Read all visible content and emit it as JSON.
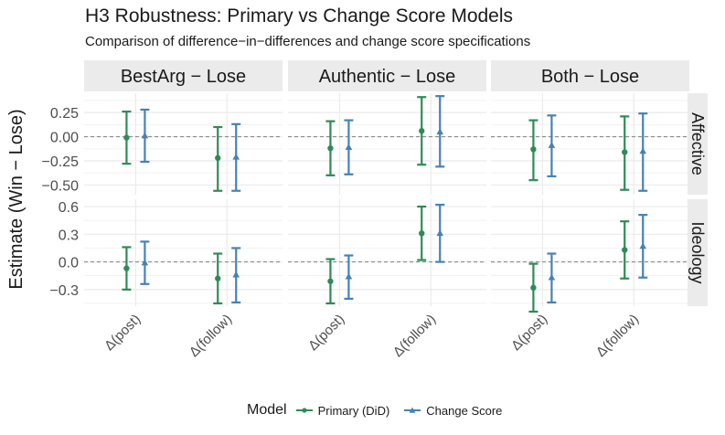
{
  "chart_data": {
    "type": "errorbar",
    "title": "H3 Robustness: Primary vs Change Score Models",
    "subtitle": "Comparison of difference−in−differences and change score specifications",
    "ylabel": "Estimate (Win − Lose)",
    "xlabel": "",
    "categories": [
      "Δ(post)",
      "Δ(follow)"
    ],
    "column_facets": [
      "BestArg − Lose",
      "Authentic − Lose",
      "Both − Lose"
    ],
    "row_facets": [
      "Affective",
      "Ideology"
    ],
    "legend": {
      "title": "Model",
      "placement": "bottom",
      "entries": [
        "Primary (DiD)",
        "Change Score"
      ]
    },
    "colors": {
      "Primary (DiD)": "#2e8b57",
      "Change Score": "#4682b4"
    },
    "reference_line": 0,
    "rows": [
      {
        "name": "Affective",
        "ylim": [
          -0.6,
          0.45
        ],
        "ticks": [
          0.25,
          0.0,
          -0.25,
          -0.5
        ],
        "tick_labels": [
          "0.25",
          "0.00",
          "−0.25",
          "−0.50"
        ]
      },
      {
        "name": "Ideology",
        "ylim": [
          -0.48,
          0.68
        ],
        "ticks": [
          0.6,
          0.3,
          0.0,
          -0.3
        ],
        "tick_labels": [
          "0.6",
          "0.3",
          "0.0",
          "−0.3"
        ]
      }
    ],
    "panels": [
      {
        "col": "BestArg − Lose",
        "row": "Affective",
        "points": [
          {
            "category": "Δ(post)",
            "series": "Primary (DiD)",
            "estimate": -0.01,
            "low": -0.28,
            "high": 0.26
          },
          {
            "category": "Δ(post)",
            "series": "Change Score",
            "estimate": 0.01,
            "low": -0.26,
            "high": 0.28
          },
          {
            "category": "Δ(follow)",
            "series": "Primary (DiD)",
            "estimate": -0.22,
            "low": -0.56,
            "high": 0.1
          },
          {
            "category": "Δ(follow)",
            "series": "Change Score",
            "estimate": -0.21,
            "low": -0.56,
            "high": 0.13
          }
        ]
      },
      {
        "col": "Authentic − Lose",
        "row": "Affective",
        "points": [
          {
            "category": "Δ(post)",
            "series": "Primary (DiD)",
            "estimate": -0.12,
            "low": -0.4,
            "high": 0.16
          },
          {
            "category": "Δ(post)",
            "series": "Change Score",
            "estimate": -0.11,
            "low": -0.39,
            "high": 0.17
          },
          {
            "category": "Δ(follow)",
            "series": "Primary (DiD)",
            "estimate": 0.06,
            "low": -0.29,
            "high": 0.41
          },
          {
            "category": "Δ(follow)",
            "series": "Change Score",
            "estimate": 0.05,
            "low": -0.31,
            "high": 0.42
          }
        ]
      },
      {
        "col": "Both − Lose",
        "row": "Affective",
        "points": [
          {
            "category": "Δ(post)",
            "series": "Primary (DiD)",
            "estimate": -0.13,
            "low": -0.45,
            "high": 0.17
          },
          {
            "category": "Δ(post)",
            "series": "Change Score",
            "estimate": -0.09,
            "low": -0.41,
            "high": 0.22
          },
          {
            "category": "Δ(follow)",
            "series": "Primary (DiD)",
            "estimate": -0.16,
            "low": -0.55,
            "high": 0.21
          },
          {
            "category": "Δ(follow)",
            "series": "Change Score",
            "estimate": -0.15,
            "low": -0.56,
            "high": 0.24
          }
        ]
      },
      {
        "col": "BestArg − Lose",
        "row": "Ideology",
        "points": [
          {
            "category": "Δ(post)",
            "series": "Primary (DiD)",
            "estimate": -0.07,
            "low": -0.3,
            "high": 0.16
          },
          {
            "category": "Δ(post)",
            "series": "Change Score",
            "estimate": -0.01,
            "low": -0.24,
            "high": 0.22
          },
          {
            "category": "Δ(follow)",
            "series": "Primary (DiD)",
            "estimate": -0.18,
            "low": -0.45,
            "high": 0.09
          },
          {
            "category": "Δ(follow)",
            "series": "Change Score",
            "estimate": -0.14,
            "low": -0.44,
            "high": 0.15
          }
        ]
      },
      {
        "col": "Authentic − Lose",
        "row": "Ideology",
        "points": [
          {
            "category": "Δ(post)",
            "series": "Primary (DiD)",
            "estimate": -0.21,
            "low": -0.45,
            "high": 0.03
          },
          {
            "category": "Δ(post)",
            "series": "Change Score",
            "estimate": -0.16,
            "low": -0.4,
            "high": 0.07
          },
          {
            "category": "Δ(follow)",
            "series": "Primary (DiD)",
            "estimate": 0.31,
            "low": 0.02,
            "high": 0.6
          },
          {
            "category": "Δ(follow)",
            "series": "Change Score",
            "estimate": 0.31,
            "low": 0.0,
            "high": 0.62
          }
        ]
      },
      {
        "col": "Both − Lose",
        "row": "Ideology",
        "points": [
          {
            "category": "Δ(post)",
            "series": "Primary (DiD)",
            "estimate": -0.28,
            "low": -0.54,
            "high": -0.02
          },
          {
            "category": "Δ(post)",
            "series": "Change Score",
            "estimate": -0.17,
            "low": -0.44,
            "high": 0.09
          },
          {
            "category": "Δ(follow)",
            "series": "Primary (DiD)",
            "estimate": 0.13,
            "low": -0.18,
            "high": 0.44
          },
          {
            "category": "Δ(follow)",
            "series": "Change Score",
            "estimate": 0.17,
            "low": -0.17,
            "high": 0.51
          }
        ]
      }
    ]
  }
}
